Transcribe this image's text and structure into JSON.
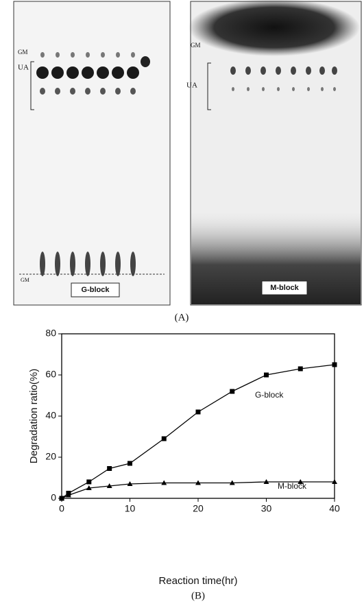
{
  "panel_a": {
    "label": "(A)",
    "left_plate": {
      "markers": [
        "GM",
        "UA"
      ],
      "bottom_label": "GM",
      "block_label": "G-block"
    },
    "right_plate": {
      "markers": [
        "GM",
        "UA"
      ],
      "block_label": "M-block"
    }
  },
  "chart_data": {
    "type": "line",
    "label": "(B)",
    "x_label": "Reaction time(hr)",
    "y_label": "Degradation ratio(%)",
    "x": [
      0,
      1,
      4,
      7,
      10,
      15,
      20,
      25,
      30,
      35,
      40
    ],
    "series": [
      {
        "name": "G-block",
        "color": "#000000",
        "marker": "square",
        "values": [
          0,
          2.5,
          8,
          14.5,
          17,
          29,
          42,
          52,
          60,
          63,
          65
        ]
      },
      {
        "name": "M-block",
        "color": "#000000",
        "marker": "triangle",
        "values": [
          0,
          1.5,
          5,
          6,
          7,
          7.5,
          7.5,
          7.5,
          8,
          8,
          8
        ]
      }
    ],
    "xlim": [
      0,
      40
    ],
    "xticks": [
      0,
      10,
      20,
      30,
      40
    ],
    "ylim": [
      0,
      80
    ],
    "yticks": [
      0,
      20,
      40,
      60,
      80
    ]
  }
}
